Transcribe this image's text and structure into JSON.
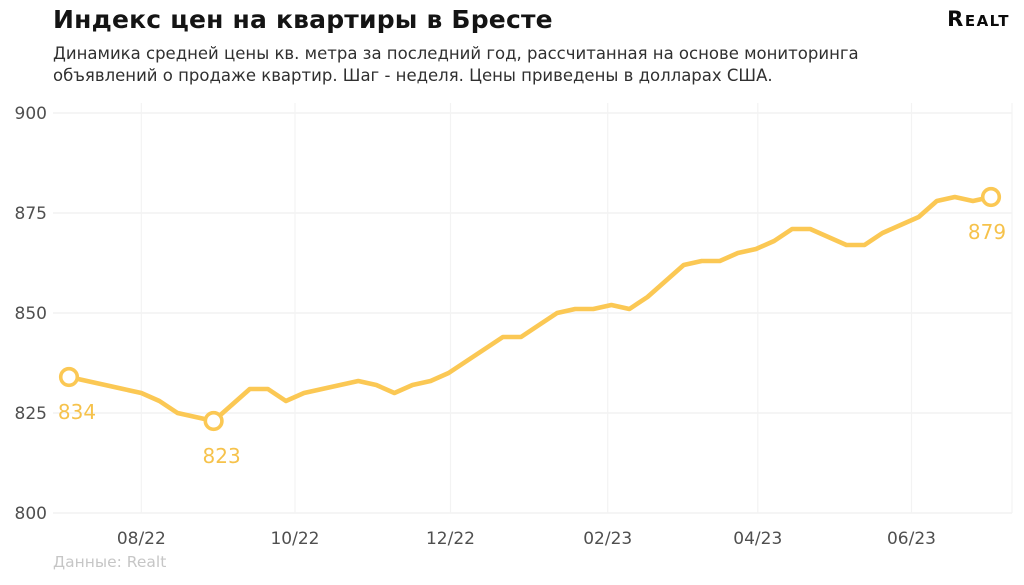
{
  "header": {
    "title": "Индекс цен на квартиры в Бресте",
    "subtitle": "Динамика средней цены кв. метра за последний год, рассчитанная на основе мониторинга объявлений о продаже квартир. Шаг - неделя. Цены приведены в долларах США.",
    "logo_text": "Realt"
  },
  "footer": {
    "source": "Данные: Realt"
  },
  "colors": {
    "line": "#FBC854",
    "marker_ring": "#FBC854",
    "marker_fill": "#FFFFFF",
    "point_label": "#F6C24B",
    "grid_horizontal": "#EFEFEF",
    "grid_vertical": "#F3F3F3",
    "axis_label": "#4F4F4F",
    "title": "#141414",
    "subtitle_text": "#303030",
    "source_text": "#C6C6C6",
    "background": "#FFFFFF"
  },
  "chart_data": {
    "type": "line",
    "title": "Индекс цен на квартиры в Бресте",
    "xlabel": "",
    "ylabel": "",
    "step": "week",
    "currency": "USD",
    "ylim": [
      800,
      900
    ],
    "y_ticks": [
      800,
      825,
      850,
      875,
      900
    ],
    "x_ticks": [
      {
        "label": "08/22",
        "week": 4.0
      },
      {
        "label": "10/22",
        "week": 12.5
      },
      {
        "label": "12/22",
        "week": 21.1
      },
      {
        "label": "02/23",
        "week": 29.8
      },
      {
        "label": "04/23",
        "week": 38.1
      },
      {
        "label": "06/23",
        "week": 46.6
      }
    ],
    "grid": "horizontal and vertical, light gray",
    "legend": "none",
    "values": [
      834,
      833,
      832,
      831,
      830,
      828,
      825,
      824,
      823,
      827,
      831,
      831,
      828,
      830,
      831,
      832,
      833,
      832,
      830,
      832,
      833,
      835,
      838,
      841,
      844,
      844,
      847,
      850,
      851,
      851,
      852,
      851,
      854,
      858,
      862,
      863,
      863,
      865,
      866,
      868,
      871,
      871,
      869,
      867,
      867,
      870,
      872,
      874,
      878,
      879,
      878,
      879
    ],
    "annotated_points": [
      {
        "index": 0,
        "value": 834,
        "label": "834"
      },
      {
        "index": 8,
        "value": 823,
        "label": "823"
      },
      {
        "index": 51,
        "value": 879,
        "label": "879"
      }
    ]
  }
}
